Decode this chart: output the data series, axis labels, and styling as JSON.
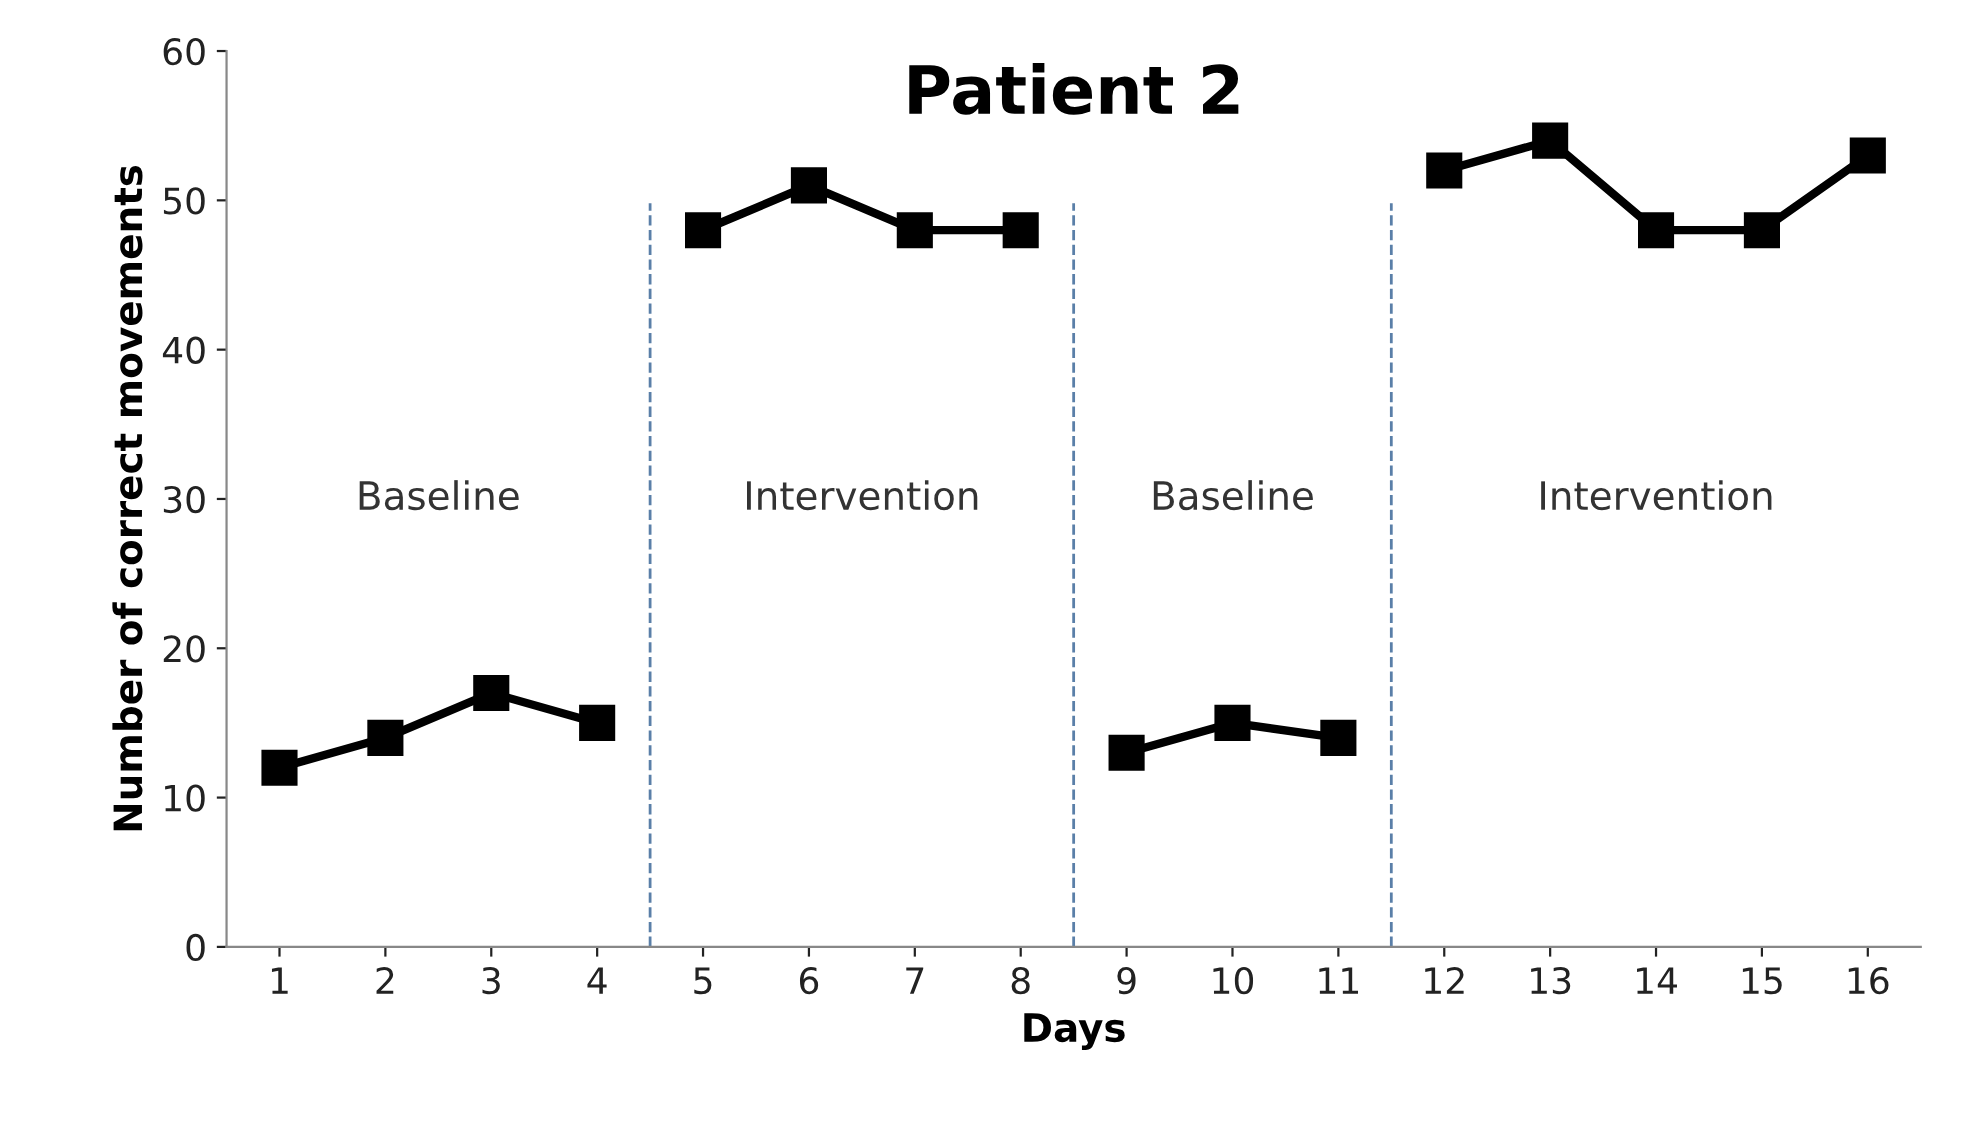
{
  "chart_data": {
    "type": "line",
    "title": "Patient 2",
    "xlabel": "Days",
    "ylabel": "Number of correct movements",
    "x": [
      1,
      2,
      3,
      4,
      5,
      6,
      7,
      8,
      9,
      10,
      11,
      12,
      13,
      14,
      15,
      16
    ],
    "series": [
      {
        "color": "#000000",
        "values": [
          12,
          14,
          17,
          15,
          null,
          null,
          null,
          null,
          13,
          15,
          14,
          null,
          null,
          null,
          null,
          null
        ]
      },
      {
        "color": "#000000",
        "values": [
          null,
          null,
          null,
          null,
          48,
          51,
          48,
          48,
          null,
          null,
          null,
          52,
          54,
          48,
          48,
          53
        ]
      }
    ],
    "xlim": [
      0.5,
      16.5
    ],
    "xticks": [
      1,
      2,
      3,
      4,
      5,
      6,
      7,
      8,
      9,
      10,
      11,
      12,
      13,
      14,
      15,
      16
    ],
    "ylim": [
      0,
      60
    ],
    "yticks": [
      0,
      10,
      20,
      30,
      40,
      50,
      60
    ],
    "ref_lines": [
      {
        "axis": "x",
        "value": 4.5,
        "color": "#5a7fa8",
        "line_style": "dashed"
      },
      {
        "axis": "x",
        "value": 8.5,
        "color": "#5a7fa8",
        "line_style": "dashed"
      },
      {
        "axis": "x",
        "value": 11.5,
        "color": "#5a7fa8",
        "line_style": "dashed"
      }
    ],
    "annotations": [
      "Baseline",
      "Intervention",
      "Baseline",
      "Intervention"
    ],
    "marker": "square",
    "line_style": "solid",
    "grid": false,
    "legend": false
  }
}
